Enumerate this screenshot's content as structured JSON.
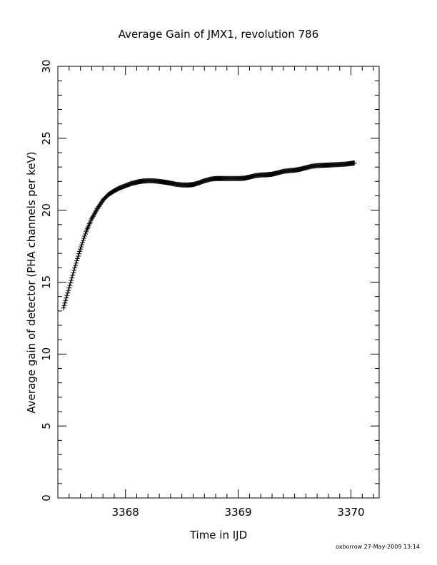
{
  "chart_data": {
    "type": "scatter",
    "title": "Average Gain of JMX1, revolution 786",
    "xlabel": "Time in IJD",
    "ylabel": "Average gain of detector (PHA channels per keV)",
    "xlim": [
      3367.4,
      3370.25
    ],
    "ylim": [
      0,
      30
    ],
    "x_ticks": [
      3368,
      3369,
      3370
    ],
    "x_tick_labels": [
      "3368",
      "3369",
      "3370"
    ],
    "y_ticks": [
      0,
      5,
      10,
      15,
      20,
      25,
      30
    ],
    "y_tick_labels": [
      "0",
      "5",
      "10",
      "15",
      "20",
      "25",
      "30"
    ],
    "marker": "plus",
    "grid": false,
    "series": [
      {
        "x": [
          3367.45,
          3367.5,
          3367.55,
          3367.6,
          3367.65,
          3367.7,
          3367.75,
          3367.8,
          3367.85,
          3367.9,
          3367.95,
          3368.0,
          3368.05,
          3368.1,
          3368.15,
          3368.2,
          3368.25,
          3368.3,
          3368.35,
          3368.4,
          3368.45,
          3368.5,
          3368.55,
          3368.6,
          3368.65,
          3368.7,
          3368.75,
          3368.8,
          3368.85,
          3368.9,
          3368.95,
          3369.0,
          3369.05,
          3369.1,
          3369.15,
          3369.2,
          3369.25,
          3369.3,
          3369.35,
          3369.4,
          3369.45,
          3369.5,
          3369.55,
          3369.6,
          3369.65,
          3369.7,
          3369.75,
          3369.8,
          3369.85,
          3369.9,
          3369.95,
          3370.0,
          3370.03
        ],
        "y": [
          13.2,
          14.6,
          16.0,
          17.3,
          18.5,
          19.4,
          20.1,
          20.7,
          21.1,
          21.35,
          21.55,
          21.7,
          21.85,
          21.95,
          22.02,
          22.05,
          22.04,
          22.0,
          21.95,
          21.88,
          21.8,
          21.76,
          21.75,
          21.78,
          21.9,
          22.05,
          22.15,
          22.2,
          22.2,
          22.2,
          22.2,
          22.2,
          22.22,
          22.3,
          22.4,
          22.45,
          22.46,
          22.5,
          22.6,
          22.7,
          22.75,
          22.78,
          22.85,
          22.95,
          23.05,
          23.1,
          23.12,
          23.14,
          23.16,
          23.18,
          23.2,
          23.25,
          23.28
        ]
      }
    ]
  },
  "footer": {
    "credit": "oxborrow 27-May-2009 13:14"
  }
}
